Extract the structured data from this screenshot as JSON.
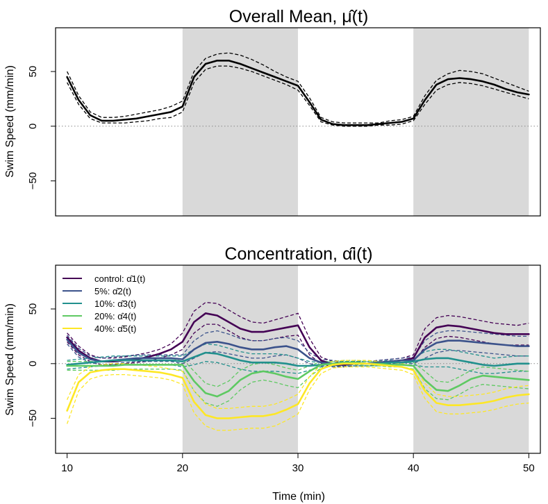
{
  "chart_data": [
    {
      "type": "line",
      "title": "Overall Mean, μ̂(t)",
      "title_text": "Overall Mean,",
      "title_symbol": "μ̂(t)",
      "xlabel": "",
      "ylabel": "Swim Speed (mm/min)",
      "xlim": [
        9,
        51
      ],
      "ylim": [
        -82,
        90
      ],
      "yticks": [
        -50,
        0,
        50
      ],
      "xticks": [],
      "shaded_intervals": [
        [
          20,
          30
        ],
        [
          40,
          50
        ]
      ],
      "reference_line_y": 0,
      "series": [
        {
          "name": "mean",
          "color": "#000000",
          "x": [
            10,
            11,
            12,
            13,
            14,
            15,
            16,
            17,
            18,
            19,
            20,
            21,
            22,
            23,
            24,
            25,
            26,
            27,
            28,
            29,
            30,
            31,
            32,
            33,
            34,
            35,
            36,
            37,
            38,
            39,
            40,
            41,
            42,
            43,
            44,
            45,
            46,
            47,
            48,
            49,
            50
          ],
          "values": [
            45,
            24,
            10,
            5,
            5,
            6,
            7,
            9,
            11,
            13,
            18,
            45,
            57,
            60,
            60,
            57,
            53,
            49,
            45,
            41,
            37,
            22,
            6,
            2,
            1,
            1,
            1,
            2,
            3,
            4,
            7,
            24,
            38,
            43,
            44,
            43,
            41,
            38,
            34,
            31,
            29
          ],
          "lower": [
            40,
            20,
            7,
            3,
            3,
            3,
            4,
            5,
            7,
            8,
            13,
            40,
            52,
            55,
            55,
            53,
            50,
            46,
            42,
            38,
            33,
            19,
            4,
            1,
            0,
            0,
            0,
            1,
            1,
            2,
            5,
            20,
            33,
            38,
            40,
            39,
            37,
            34,
            31,
            28,
            25
          ],
          "upper": [
            50,
            28,
            13,
            8,
            8,
            9,
            11,
            13,
            15,
            18,
            23,
            50,
            62,
            66,
            67,
            65,
            61,
            56,
            50,
            45,
            41,
            26,
            8,
            4,
            3,
            3,
            3,
            3,
            5,
            6,
            9,
            28,
            42,
            48,
            51,
            50,
            48,
            44,
            40,
            36,
            32
          ]
        }
      ]
    },
    {
      "type": "line",
      "title": "Concentration, α̂_i(t)",
      "title_text": "Concentration,",
      "title_symbol": "α̂i(t)",
      "xlabel": "Time (min)",
      "ylabel": "Swim Speed (mm/min)",
      "xlim": [
        9,
        51
      ],
      "ylim": [
        -82,
        90
      ],
      "yticks": [
        -50,
        0,
        50
      ],
      "xticks": [
        10,
        20,
        30,
        40,
        50
      ],
      "shaded_intervals": [
        [
          20,
          30
        ],
        [
          40,
          50
        ]
      ],
      "reference_line_y": 0,
      "legend_position": "top-left",
      "series": [
        {
          "name": "control",
          "legend": "control: α̂1(t)",
          "legend_prefix": "control:",
          "legend_symbol": "α̂1(t)",
          "color": "#440154",
          "x": [
            10,
            11,
            12,
            13,
            14,
            15,
            16,
            17,
            18,
            19,
            20,
            21,
            22,
            23,
            24,
            25,
            26,
            27,
            28,
            29,
            30,
            31,
            32,
            33,
            34,
            35,
            36,
            37,
            38,
            39,
            40,
            41,
            42,
            43,
            44,
            45,
            46,
            47,
            48,
            49,
            50
          ],
          "values": [
            24,
            12,
            5,
            2,
            2,
            3,
            4,
            6,
            9,
            13,
            20,
            38,
            46,
            44,
            38,
            32,
            29,
            29,
            31,
            33,
            35,
            15,
            3,
            -1,
            -1,
            0,
            0,
            1,
            2,
            3,
            5,
            24,
            33,
            35,
            34,
            32,
            30,
            28,
            27,
            27,
            27
          ],
          "lower": [
            20,
            8,
            2,
            -1,
            -1,
            0,
            1,
            2,
            5,
            8,
            13,
            28,
            36,
            36,
            30,
            24,
            21,
            21,
            23,
            25,
            26,
            8,
            0,
            -3,
            -3,
            -2,
            -2,
            -1,
            0,
            1,
            2,
            15,
            23,
            25,
            24,
            22,
            20,
            18,
            17,
            17,
            17
          ],
          "upper": [
            28,
            16,
            8,
            5,
            5,
            6,
            8,
            10,
            13,
            18,
            28,
            48,
            56,
            55,
            49,
            43,
            38,
            37,
            40,
            43,
            46,
            23,
            6,
            2,
            1,
            2,
            2,
            3,
            4,
            5,
            8,
            32,
            42,
            44,
            43,
            41,
            39,
            37,
            36,
            35,
            37
          ]
        },
        {
          "name": "5%",
          "legend": "5%: α̂2(t)",
          "legend_prefix": "5%:",
          "legend_symbol": "α̂2(t)",
          "color": "#3b528b",
          "x": [
            10,
            11,
            12,
            13,
            14,
            15,
            16,
            17,
            18,
            19,
            20,
            21,
            22,
            23,
            24,
            25,
            26,
            27,
            28,
            29,
            30,
            31,
            32,
            33,
            34,
            35,
            36,
            37,
            38,
            39,
            40,
            41,
            42,
            43,
            44,
            45,
            46,
            47,
            48,
            49,
            50
          ],
          "values": [
            22,
            10,
            4,
            2,
            3,
            4,
            5,
            5,
            5,
            5,
            4,
            13,
            19,
            20,
            18,
            15,
            13,
            13,
            15,
            16,
            13,
            5,
            1,
            0,
            0,
            0,
            0,
            1,
            2,
            3,
            3,
            13,
            19,
            21,
            21,
            20,
            19,
            18,
            17,
            16,
            16
          ],
          "lower": [
            18,
            6,
            1,
            -1,
            0,
            1,
            2,
            2,
            2,
            2,
            0,
            5,
            10,
            11,
            9,
            7,
            5,
            5,
            7,
            8,
            5,
            0,
            -2,
            -3,
            -2,
            -2,
            -2,
            -1,
            0,
            1,
            0,
            5,
            10,
            12,
            12,
            11,
            10,
            9,
            8,
            7,
            7
          ],
          "upper": [
            26,
            14,
            7,
            5,
            6,
            7,
            8,
            8,
            8,
            8,
            8,
            21,
            28,
            30,
            27,
            23,
            21,
            21,
            23,
            24,
            21,
            10,
            4,
            3,
            2,
            2,
            2,
            3,
            4,
            5,
            6,
            21,
            28,
            30,
            30,
            29,
            28,
            27,
            26,
            25,
            25
          ]
        },
        {
          "name": "10%",
          "legend": "10%: α̂3(t)",
          "legend_prefix": "10%:",
          "legend_symbol": "α̂3(t)",
          "color": "#21908d",
          "x": [
            10,
            11,
            12,
            13,
            14,
            15,
            16,
            17,
            18,
            19,
            20,
            21,
            22,
            23,
            24,
            25,
            26,
            27,
            28,
            29,
            30,
            31,
            32,
            33,
            34,
            35,
            36,
            37,
            38,
            39,
            40,
            41,
            42,
            43,
            44,
            45,
            46,
            47,
            48,
            49,
            50
          ],
          "values": [
            -1,
            0,
            1,
            2,
            3,
            3,
            3,
            3,
            3,
            3,
            2,
            6,
            10,
            9,
            6,
            3,
            1,
            1,
            1,
            0,
            -2,
            -2,
            -1,
            0,
            0,
            0,
            0,
            0,
            1,
            1,
            2,
            4,
            5,
            5,
            3,
            1,
            -1,
            -2,
            -1,
            0,
            0
          ],
          "lower": [
            -5,
            -4,
            -3,
            -2,
            -1,
            -1,
            -1,
            -1,
            -1,
            -1,
            -3,
            -1,
            2,
            1,
            -2,
            -5,
            -7,
            -7,
            -7,
            -8,
            -9,
            -6,
            -3,
            -2,
            -2,
            -2,
            -2,
            -2,
            -1,
            -1,
            -1,
            -3,
            -3,
            -3,
            -5,
            -7,
            -9,
            -9,
            -8,
            -7,
            -7
          ],
          "upper": [
            3,
            4,
            5,
            6,
            7,
            7,
            7,
            7,
            7,
            7,
            7,
            13,
            18,
            17,
            14,
            11,
            9,
            9,
            9,
            8,
            5,
            2,
            1,
            2,
            2,
            2,
            2,
            2,
            3,
            3,
            5,
            11,
            13,
            13,
            11,
            9,
            7,
            5,
            6,
            7,
            7
          ]
        },
        {
          "name": "20%",
          "legend": "20%: α̂4(t)",
          "legend_prefix": "20%:",
          "legend_symbol": "α̂4(t)",
          "color": "#5ec962",
          "x": [
            10,
            11,
            12,
            13,
            14,
            15,
            16,
            17,
            18,
            19,
            20,
            21,
            22,
            23,
            24,
            25,
            26,
            27,
            28,
            29,
            30,
            31,
            32,
            33,
            34,
            35,
            36,
            37,
            38,
            39,
            40,
            41,
            42,
            43,
            44,
            45,
            46,
            47,
            48,
            49,
            50
          ],
          "values": [
            -2,
            -2,
            -2,
            -2,
            -2,
            -1,
            -1,
            -1,
            -1,
            -1,
            -1,
            -16,
            -27,
            -30,
            -25,
            -15,
            -9,
            -7,
            -9,
            -12,
            -14,
            -7,
            -1,
            0,
            1,
            1,
            0,
            0,
            -1,
            -1,
            -2,
            -15,
            -24,
            -25,
            -20,
            -14,
            -11,
            -12,
            -13,
            -14,
            -15
          ],
          "lower": [
            -6,
            -6,
            -6,
            -6,
            -6,
            -5,
            -5,
            -5,
            -5,
            -5,
            -6,
            -25,
            -36,
            -39,
            -34,
            -24,
            -17,
            -15,
            -17,
            -20,
            -22,
            -12,
            -4,
            -2,
            -1,
            -1,
            -2,
            -2,
            -3,
            -3,
            -5,
            -23,
            -32,
            -33,
            -28,
            -22,
            -19,
            -20,
            -21,
            -22,
            -23
          ],
          "upper": [
            2,
            2,
            2,
            2,
            2,
            3,
            3,
            3,
            3,
            3,
            4,
            -7,
            -18,
            -21,
            -16,
            -6,
            -1,
            1,
            -1,
            -4,
            -6,
            -2,
            2,
            2,
            3,
            3,
            2,
            2,
            1,
            1,
            1,
            -7,
            -16,
            -17,
            -12,
            -6,
            -3,
            -4,
            -5,
            -6,
            -7
          ]
        },
        {
          "name": "40%",
          "legend": "40%: α̂5(t)",
          "legend_prefix": "40%:",
          "legend_symbol": "α̂5(t)",
          "color": "#fde725",
          "x": [
            10,
            11,
            12,
            13,
            14,
            15,
            16,
            17,
            18,
            19,
            20,
            21,
            22,
            23,
            24,
            25,
            26,
            27,
            28,
            29,
            30,
            31,
            32,
            33,
            34,
            35,
            36,
            37,
            38,
            39,
            40,
            41,
            42,
            43,
            44,
            45,
            46,
            47,
            48,
            49,
            50
          ],
          "values": [
            -43,
            -17,
            -8,
            -6,
            -5,
            -5,
            -6,
            -7,
            -8,
            -10,
            -13,
            -35,
            -47,
            -50,
            -50,
            -49,
            -48,
            -48,
            -46,
            -42,
            -37,
            -18,
            -5,
            -1,
            0,
            0,
            0,
            -1,
            -2,
            -3,
            -6,
            -25,
            -36,
            -38,
            -38,
            -37,
            -36,
            -34,
            -31,
            -29,
            -28
          ],
          "lower": [
            -55,
            -25,
            -14,
            -11,
            -10,
            -10,
            -11,
            -12,
            -13,
            -15,
            -19,
            -45,
            -57,
            -61,
            -61,
            -60,
            -59,
            -59,
            -57,
            -52,
            -46,
            -24,
            -9,
            -4,
            -3,
            -3,
            -3,
            -4,
            -5,
            -6,
            -10,
            -32,
            -44,
            -46,
            -46,
            -45,
            -44,
            -42,
            -39,
            -37,
            -36
          ],
          "upper": [
            -33,
            -10,
            -3,
            -1,
            0,
            0,
            -1,
            -2,
            -3,
            -5,
            -7,
            -25,
            -37,
            -41,
            -41,
            -40,
            -39,
            -39,
            -37,
            -33,
            -28,
            -12,
            -1,
            2,
            3,
            3,
            3,
            2,
            1,
            0,
            -2,
            -18,
            -28,
            -30,
            -30,
            -29,
            -28,
            -26,
            -23,
            -21,
            -20
          ]
        }
      ]
    }
  ]
}
